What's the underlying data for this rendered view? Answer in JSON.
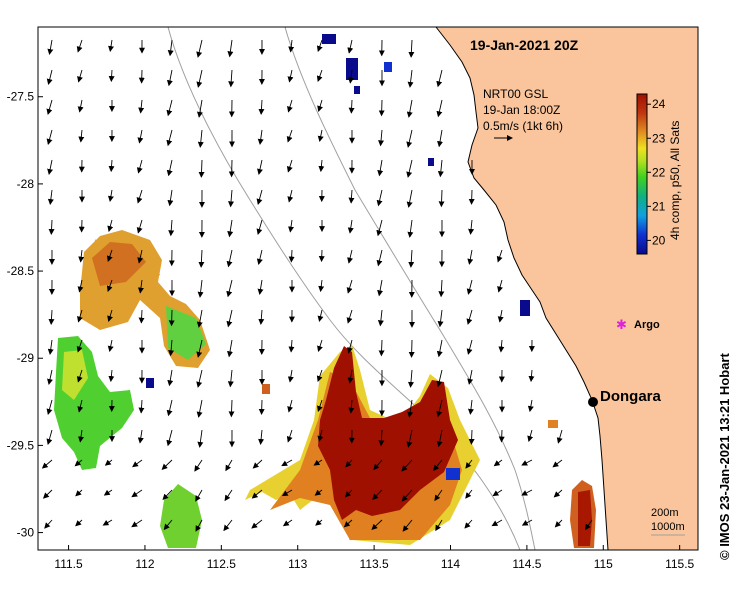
{
  "map": {
    "date_title": "19-Jan-2021 20Z",
    "current_info": {
      "source": "NRT00 GSL",
      "time": "19-Jan 18:00Z",
      "scale_label": "0.5m/s (1kt 6h)"
    },
    "colorbar": {
      "label": "4h comp, p50, All Sats",
      "ticks": [
        "20",
        "21",
        "22",
        "23",
        "24"
      ],
      "range": [
        19.6,
        24.3
      ]
    },
    "places": [
      {
        "name": "Dongara",
        "lon": 114.93,
        "lat": -29.25,
        "marker": "black-dot"
      },
      {
        "name": "Argo",
        "lon": 115.11,
        "lat": -28.86,
        "marker": "magenta-star"
      }
    ],
    "depth_contours": [
      "200m",
      "1000m"
    ],
    "credit": "© IMOS 23-Jan-2021 13:21 Hobart",
    "axes": {
      "x_ticks": [
        "111.5",
        "112",
        "112.5",
        "113",
        "113.5",
        "114",
        "114.5",
        "115",
        "115.5"
      ],
      "y_ticks": [
        "-27.5",
        "-28",
        "-28.5",
        "-29",
        "-29.5",
        "-30"
      ],
      "lon_range": [
        111.3,
        115.62
      ],
      "lat_range": [
        -30.1,
        -27.1
      ]
    },
    "colors": {
      "land": "#fac59c",
      "warm_sst": "#a01000",
      "cold_sst": "#0a0a8c",
      "contour": "#a0a0a0"
    }
  }
}
